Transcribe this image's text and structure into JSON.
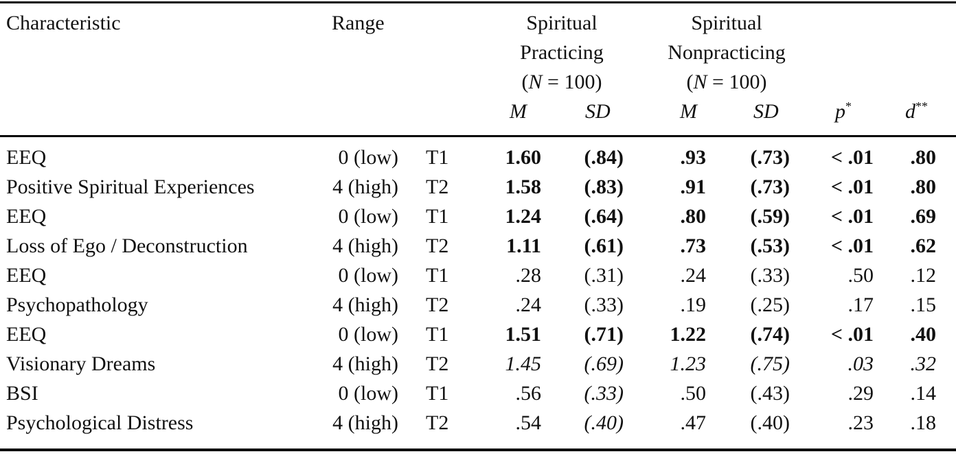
{
  "header": {
    "characteristic": "Characteristic",
    "range": "Range",
    "group1": {
      "line1": "Spiritual",
      "line2": "Practicing",
      "n_open": "(",
      "n_var": "N",
      "n_rest": " = 100)"
    },
    "group2": {
      "line1": "Spiritual",
      "line2": "Nonpracticing",
      "n_open": "(",
      "n_var": "N",
      "n_rest": " = 100)"
    },
    "m_label": "M",
    "sd_label": "SD",
    "p_label": "p",
    "p_sup": "*",
    "d_label": "d",
    "d_sup": "**"
  },
  "rows": [
    {
      "characteristic": "EEQ",
      "range": "0 (low)",
      "time": "T1",
      "m1": "1.60",
      "sd1": "(.84)",
      "m2": ".93",
      "sd2": "(.73)",
      "p": "< .01",
      "d": ".80",
      "style": {
        "m1": "b",
        "sd1": "b",
        "m2": "b",
        "sd2": "b",
        "p": "b",
        "d": "b"
      }
    },
    {
      "characteristic": "Positive Spiritual Experiences",
      "range": "4 (high)",
      "time": "T2",
      "m1": "1.58",
      "sd1": "(.83)",
      "m2": ".91",
      "sd2": "(.73)",
      "p": "< .01",
      "d": ".80",
      "style": {
        "m1": "b",
        "sd1": "b",
        "m2": "b",
        "sd2": "b",
        "p": "b",
        "d": "b"
      }
    },
    {
      "characteristic": "EEQ",
      "range": "0 (low)",
      "time": "T1",
      "m1": "1.24",
      "sd1": "(.64)",
      "m2": ".80",
      "sd2": "(.59)",
      "p": "< .01",
      "d": ".69",
      "style": {
        "m1": "b",
        "sd1": "b",
        "m2": "b",
        "sd2": "b",
        "p": "b",
        "d": "b"
      }
    },
    {
      "characteristic": "Loss of Ego / Deconstruction",
      "range": "4 (high)",
      "time": "T2",
      "m1": "1.11",
      "sd1": "(.61)",
      "m2": ".73",
      "sd2": "(.53)",
      "p": "< .01",
      "d": ".62",
      "style": {
        "m1": "b",
        "sd1": "b",
        "m2": "b",
        "sd2": "b",
        "p": "b",
        "d": "b"
      }
    },
    {
      "characteristic": "EEQ",
      "range": "0 (low)",
      "time": "T1",
      "m1": ".28",
      "sd1": "(.31)",
      "m2": ".24",
      "sd2": "(.33)",
      "p": ".50",
      "d": ".12",
      "style": {}
    },
    {
      "characteristic": "Psychopathology",
      "range": "4 (high)",
      "time": "T2",
      "m1": ".24",
      "sd1": "(.33)",
      "m2": ".19",
      "sd2": "(.25)",
      "p": ".17",
      "d": ".15",
      "style": {}
    },
    {
      "characteristic": "EEQ",
      "range": "0 (low)",
      "time": "T1",
      "m1": "1.51",
      "sd1": "(.71)",
      "m2": "1.22",
      "sd2": "(.74)",
      "p": "< .01",
      "d": ".40",
      "style": {
        "m1": "b",
        "sd1": "b",
        "m2": "b",
        "sd2": "b",
        "p": "b",
        "d": "b"
      }
    },
    {
      "characteristic": "Visionary Dreams",
      "range": "4 (high)",
      "time": "T2",
      "m1": "1.45",
      "sd1": "(.69)",
      "m2": "1.23",
      "sd2": "(.75)",
      "p": ".03",
      "d": ".32",
      "style": {
        "m1": "i",
        "sd1": "i",
        "m2": "i",
        "sd2": "i",
        "p": "i",
        "d": "i"
      }
    },
    {
      "characteristic": "BSI",
      "range": "0 (low)",
      "time": "T1",
      "m1": ".56",
      "sd1": "(.33)",
      "m2": ".50",
      "sd2": "(.43)",
      "p": ".29",
      "d": ".14",
      "style": {
        "sd1": "i"
      }
    },
    {
      "characteristic": "Psychological Distress",
      "range": "4 (high)",
      "time": "T2",
      "m1": ".54",
      "sd1": "(.40)",
      "m2": ".47",
      "sd2": "(.40)",
      "p": ".23",
      "d": ".18",
      "style": {
        "sd1": "i"
      }
    }
  ]
}
